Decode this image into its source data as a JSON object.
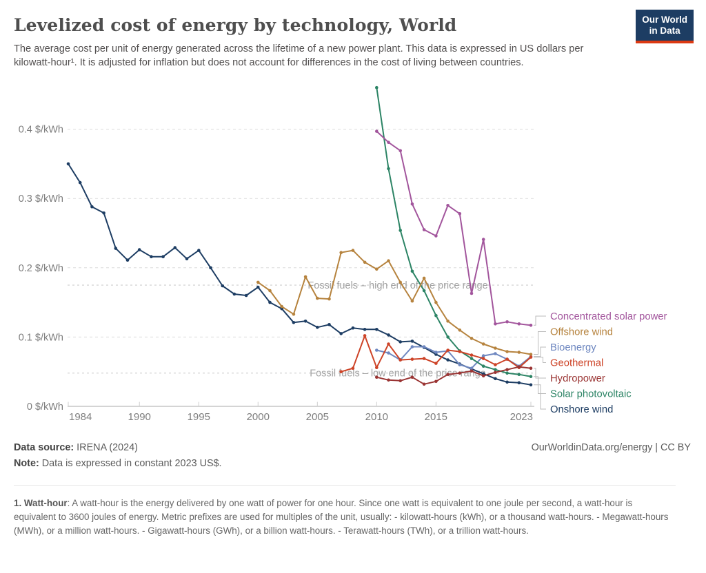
{
  "header": {
    "title": "Levelized cost of energy by technology, World",
    "subtitle": "The average cost per unit of energy generated across the lifetime of a new power plant. This data is expressed in US dollars per kilowatt-hour¹. It is adjusted for inflation but does not account for differences in the cost of living between countries.",
    "logo_line1": "Our World",
    "logo_line2": "in Data"
  },
  "footer": {
    "source_label": "Data source:",
    "source_value": " IRENA (2024)",
    "note_label": "Note:",
    "note_value": " Data is expressed in constant 2023 US$.",
    "link": "OurWorldinData.org/energy | CC BY"
  },
  "footnote": {
    "lead": "1. Watt-hour",
    "text": ": A watt-hour is the energy delivered by one watt of power for one hour. Since one watt is equivalent to one joule per second, a watt-hour is equivalent to 3600 joules of energy. Metric prefixes are used for multiples of the unit, usually: - kilowatt-hours (kWh), or a thousand watt-hours. - Megawatt-hours (MWh), or a million watt-hours. - Gigawatt-hours (GWh), or a billion watt-hours. - Terawatt-hours (TWh), or a trillion watt-hours."
  },
  "colors": {
    "axis_text": "#7d7d7d",
    "gridline": "#dcdcdc",
    "axis_line": "#a8a8a8",
    "tick": "#cfcfcf",
    "reference_line": "#c6c6c6",
    "reference_label": "#a3a3a3",
    "legend_connector": "#bbbbbb",
    "logo_bg": "#1d3d63",
    "logo_red": "#dc3912"
  },
  "chart_data": {
    "type": "line",
    "title": "Levelized cost of energy by technology, World",
    "unit": "$/kWh",
    "xlim": [
      1984,
      2023
    ],
    "ylim": [
      0,
      0.46
    ],
    "grid": true,
    "legend_position": "right",
    "x_ticks": [
      1984,
      1990,
      1995,
      2000,
      2005,
      2010,
      2015,
      2023
    ],
    "y_ticks": [
      0,
      0.1,
      0.2,
      0.3,
      0.4
    ],
    "y_tick_suffix": " $/kWh",
    "reference_lines": [
      {
        "id": "fossil-high",
        "label": "Fossil fuels – high end of the price range",
        "value": 0.175
      },
      {
        "id": "fossil-low",
        "label": "Fossil fuels – low end of the price range",
        "value": 0.048
      }
    ],
    "series": [
      {
        "id": "csp",
        "name": "Concentrated solar power",
        "color": "#a2559c",
        "start_year": 2010,
        "values": [
          0.397,
          0.381,
          0.369,
          0.292,
          0.255,
          0.246,
          0.29,
          0.278,
          0.163,
          0.241,
          0.119,
          0.122,
          0.119,
          0.117
        ]
      },
      {
        "id": "offshore_wind",
        "name": "Offshore wind",
        "color": "#b6833e",
        "start_year": 2000,
        "values": [
          0.179,
          0.167,
          0.144,
          0.133,
          0.187,
          0.156,
          0.155,
          0.222,
          0.225,
          0.208,
          0.198,
          0.21,
          0.179,
          0.152,
          0.185,
          0.15,
          0.123,
          0.11,
          0.098,
          0.09,
          0.084,
          0.079,
          0.078,
          0.075
        ]
      },
      {
        "id": "bioenergy",
        "name": "Bioenergy",
        "color": "#6e87c0",
        "start_year": 2010,
        "values": [
          0.081,
          0.077,
          0.067,
          0.086,
          0.086,
          0.078,
          0.08,
          0.06,
          0.055,
          0.073,
          0.076,
          0.068,
          0.058,
          0.072
        ]
      },
      {
        "id": "geothermal",
        "name": "Geothermal",
        "color": "#cd4327",
        "start_year": 2007,
        "values": [
          0.05,
          0.055,
          0.102,
          0.056,
          0.09,
          0.067,
          0.068,
          0.069,
          0.062,
          0.081,
          0.079,
          0.074,
          0.069,
          0.06,
          0.068,
          0.056,
          0.071
        ]
      },
      {
        "id": "hydropower",
        "name": "Hydropower",
        "color": "#9a3433",
        "start_year": 2010,
        "values": [
          0.042,
          0.038,
          0.037,
          0.042,
          0.032,
          0.036,
          0.046,
          0.048,
          0.051,
          0.044,
          0.049,
          0.053,
          0.057,
          0.055
        ]
      },
      {
        "id": "solar_pv",
        "name": "Solar photovoltaic",
        "color": "#2c8465",
        "start_year": 2010,
        "values": [
          0.46,
          0.343,
          0.254,
          0.195,
          0.167,
          0.131,
          0.1,
          0.08,
          0.069,
          0.058,
          0.053,
          0.048,
          0.046,
          0.043
        ]
      },
      {
        "id": "onshore_wind",
        "name": "Onshore wind",
        "color": "#1d3d63",
        "start_year": 1984,
        "values": [
          0.35,
          0.323,
          0.288,
          0.279,
          0.228,
          0.211,
          0.226,
          0.216,
          0.216,
          0.229,
          0.213,
          0.225,
          0.2,
          0.174,
          0.162,
          0.16,
          0.172,
          0.15,
          0.141,
          0.121,
          0.123,
          0.114,
          0.118,
          0.105,
          0.113,
          0.111,
          0.111,
          0.103,
          0.093,
          0.094,
          0.085,
          0.075,
          0.067,
          0.061,
          0.054,
          0.047,
          0.04,
          0.035,
          0.034,
          0.031
        ]
      }
    ]
  }
}
